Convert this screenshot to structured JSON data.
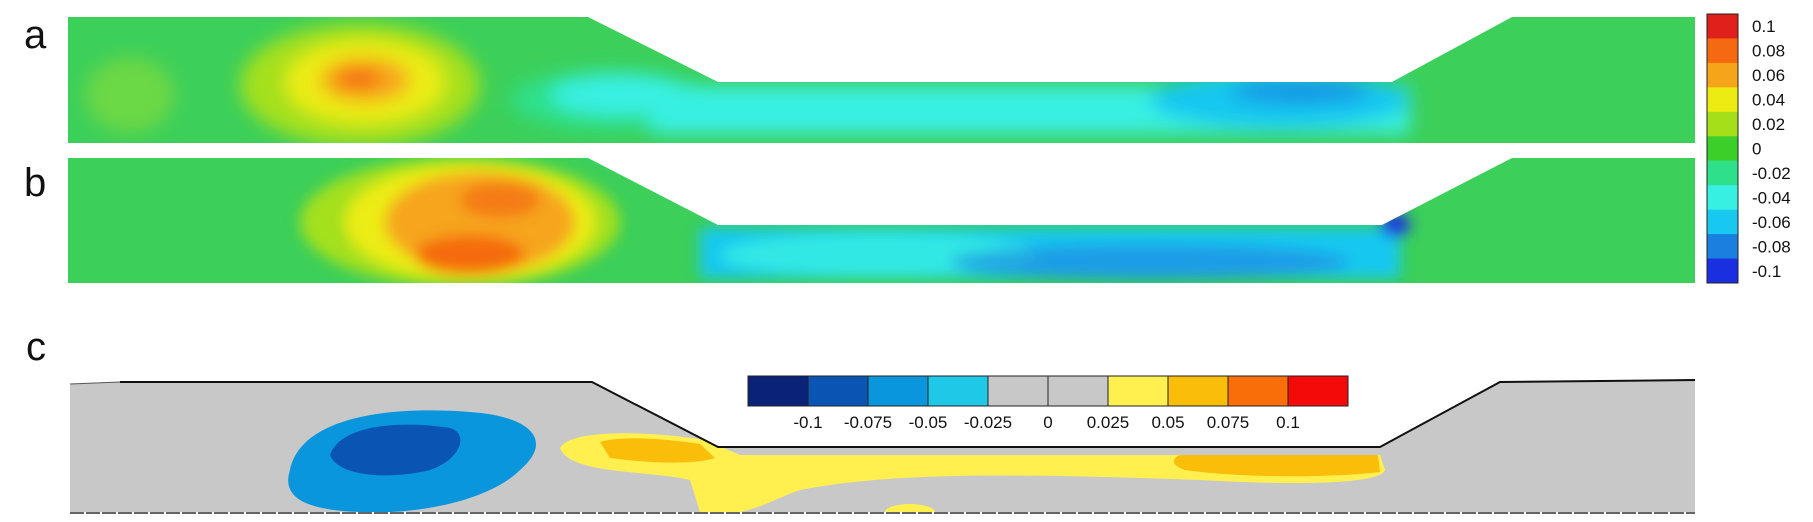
{
  "panels": [
    {
      "id": "a",
      "label": "a"
    },
    {
      "id": "b",
      "label": "b"
    },
    {
      "id": "c",
      "label": "c"
    }
  ],
  "colorbar_vertical": {
    "labels": [
      "0.1",
      "0.08",
      "0.06",
      "0.04",
      "0.02",
      "0",
      "-0.02",
      "-0.04",
      "-0.06",
      "-0.08",
      "-0.1"
    ],
    "colors": [
      "#e0201a",
      "#f56a10",
      "#f6a51a",
      "#ecec12",
      "#a4e01a",
      "#3ccf2a",
      "#2fe08a",
      "#38f0e2",
      "#19c8f0",
      "#1a80e0",
      "#1a30e0"
    ]
  },
  "colorbar_horizontal": {
    "labels": [
      "-0.1",
      "-0.075",
      "-0.05",
      "-0.025",
      "0",
      "0.025",
      "0.05",
      "0.075",
      "0.1"
    ],
    "colors": [
      "#0a2378",
      "#0a55b4",
      "#0a96dc",
      "#1ec8e6",
      "#c8c8c8",
      "#c8c8c8",
      "#fff050",
      "#fabe0a",
      "#fa6e0a",
      "#f50a0a"
    ]
  }
}
